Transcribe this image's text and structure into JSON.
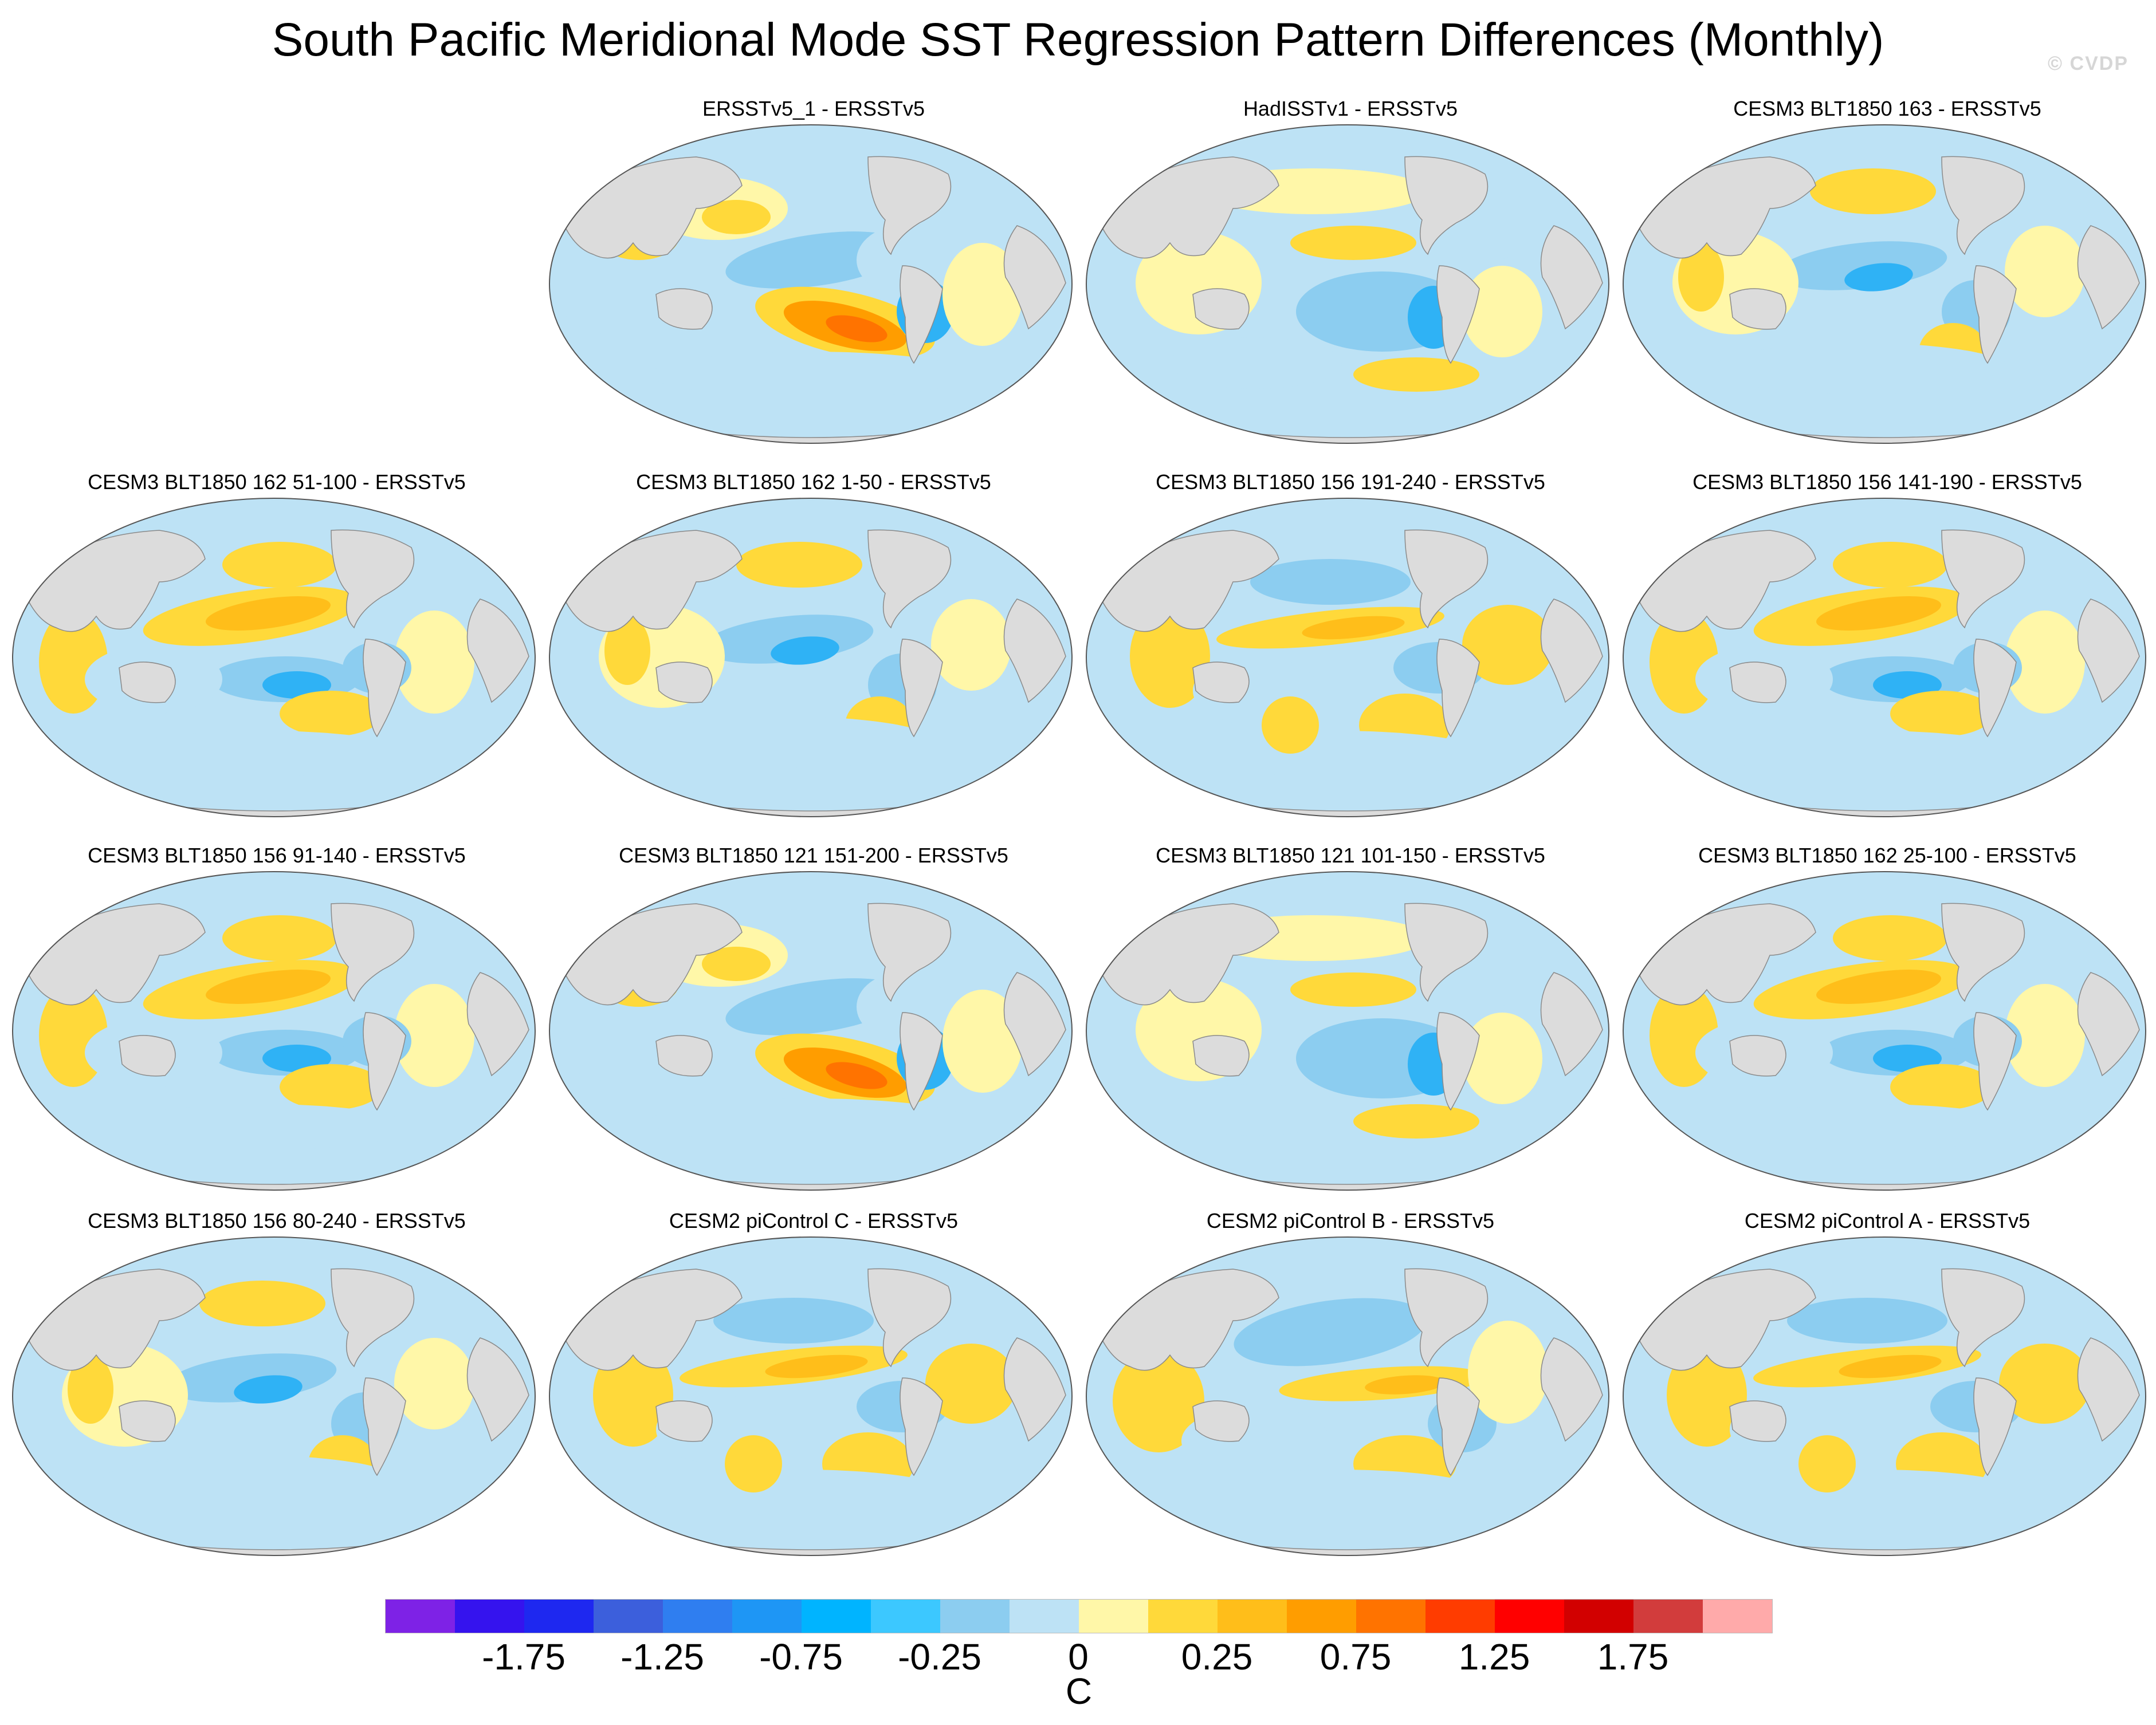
{
  "title": "South Pacific Meridional Mode SST Regression Pattern Differences (Monthly)",
  "watermark": "© CVDP",
  "panels": [
    {
      "title": "ERSSTv5_1 - ERSSTv5",
      "pattern": "strong-sp-warm"
    },
    {
      "title": "HadISSTv1 - ERSSTv5",
      "pattern": "cool-sp"
    },
    {
      "title": "CESM3 BLT1850 163 - ERSSTv5",
      "pattern": "mixed-cool"
    },
    {
      "title": "CESM3 BLT1850 162 51-100 - ERSSTv5",
      "pattern": "warm-north"
    },
    {
      "title": "CESM3 BLT1850 162 1-50 - ERSSTv5",
      "pattern": "mixed-cool"
    },
    {
      "title": "CESM3 BLT1850 156 191-240 - ERSSTv5",
      "pattern": "mixed-warm"
    },
    {
      "title": "CESM3 BLT1850 156 141-190 - ERSSTv5",
      "pattern": "warm-north"
    },
    {
      "title": "CESM3 BLT1850 156 91-140 - ERSSTv5",
      "pattern": "warm-north"
    },
    {
      "title": "CESM3 BLT1850 121 151-200 - ERSSTv5",
      "pattern": "strong-sp-warm"
    },
    {
      "title": "CESM3 BLT1850 121 101-150 - ERSSTv5",
      "pattern": "cool-sp"
    },
    {
      "title": "CESM3 BLT1850 162 25-100 - ERSSTv5",
      "pattern": "warm-north"
    },
    {
      "title": "CESM3 BLT1850 156 80-240 - ERSSTv5",
      "pattern": "mixed-cool"
    },
    {
      "title": "CESM2 piControl C - ERSSTv5",
      "pattern": "mixed-warm"
    },
    {
      "title": "CESM2 piControl B - ERSSTv5",
      "pattern": "cool-north"
    },
    {
      "title": "CESM2 piControl A - ERSSTv5",
      "pattern": "mixed-warm"
    }
  ],
  "colorbar": {
    "units": "C",
    "labels": [
      "-1.75",
      "-1.25",
      "-0.75",
      "-0.25",
      "0",
      "0.25",
      "0.75",
      "1.25",
      "1.75"
    ],
    "colors": [
      "#7e22e6",
      "#3513ee",
      "#1e28f0",
      "#3c5fdc",
      "#2f7ef0",
      "#1e96f5",
      "#00b4ff",
      "#3cc8ff",
      "#8ccdf0",
      "#bde2f5",
      "#fff7a8",
      "#ffd93a",
      "#ffbe1a",
      "#ff9d00",
      "#ff7300",
      "#ff3c00",
      "#ff0000",
      "#d20000",
      "#d23c3c",
      "#ffaaaa"
    ]
  }
}
